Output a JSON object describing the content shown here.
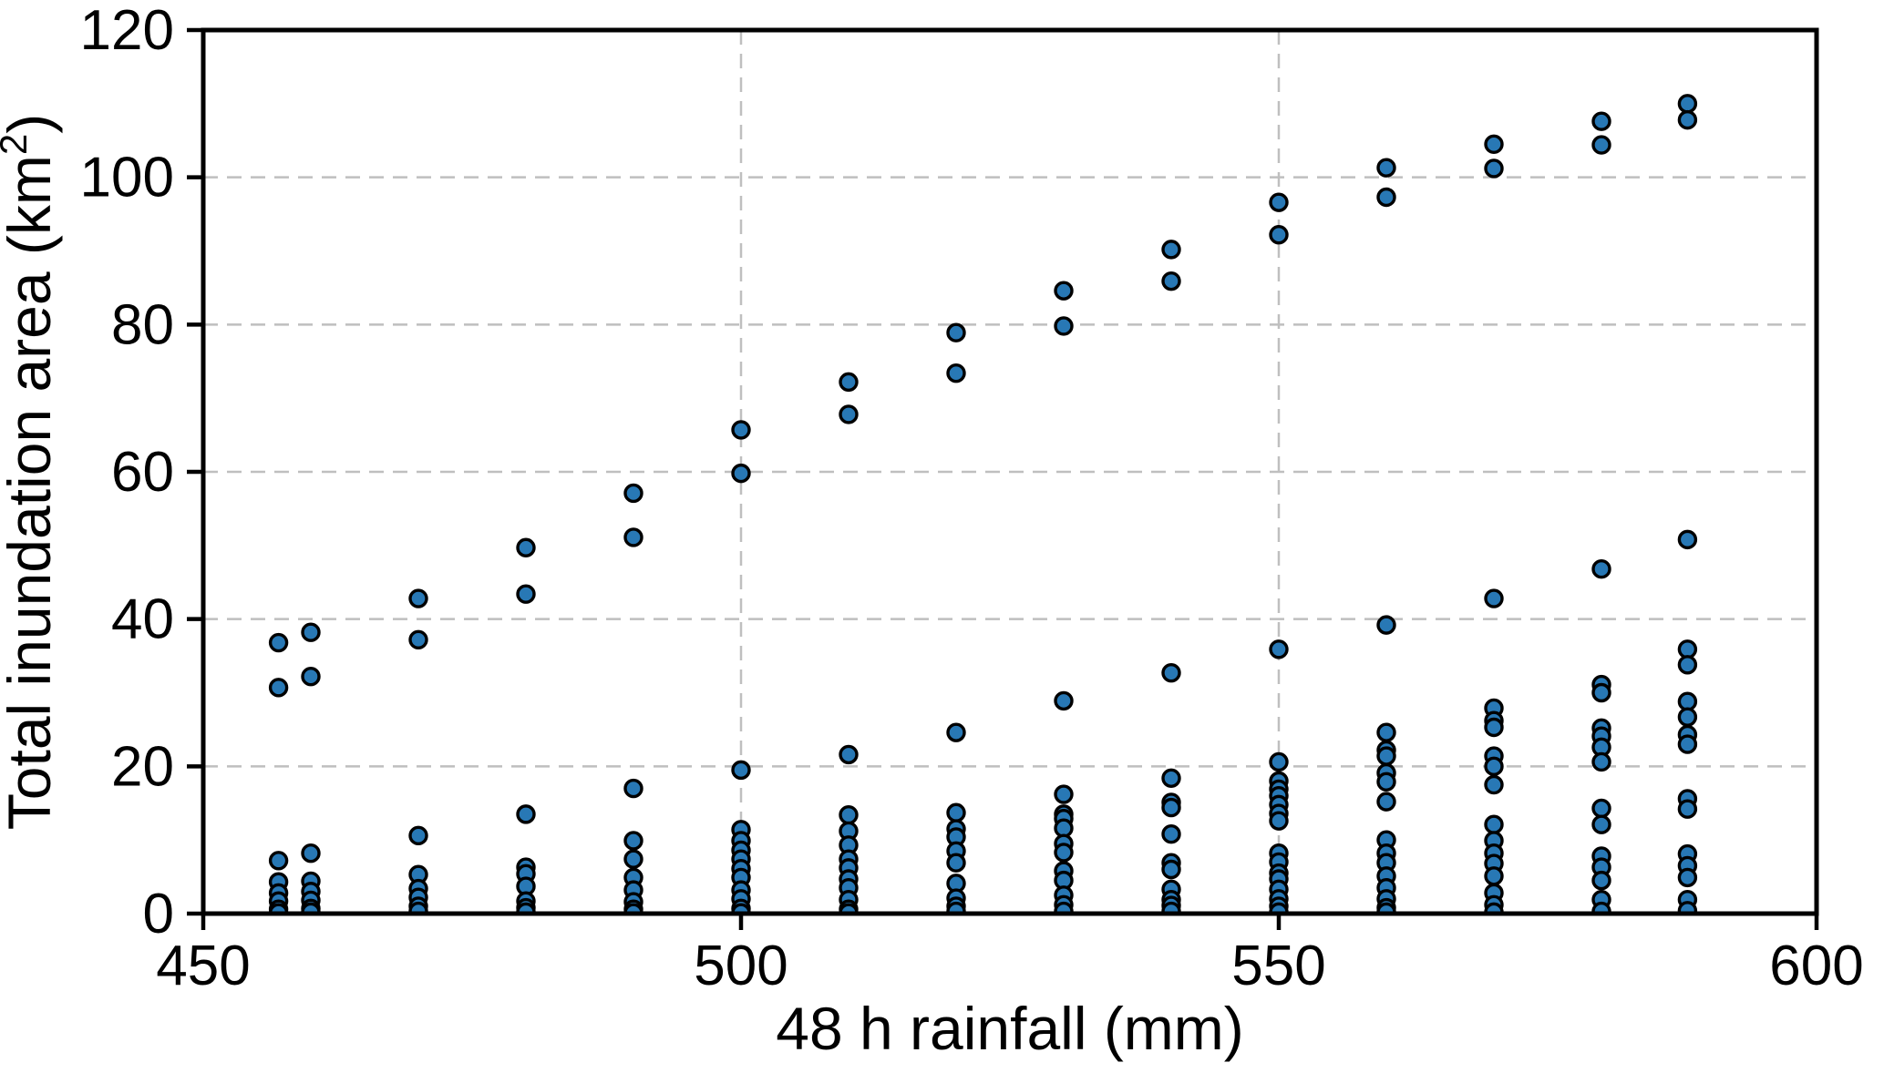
{
  "figure": {
    "background_color": "#ffffff",
    "plot_border_color": "#000000"
  },
  "chart_data": {
    "type": "scatter",
    "title": "",
    "xlabel": "48 h rainfall (mm)",
    "ylabel": "Total inundation area (km²)",
    "ylabel_parts": {
      "pre": "Total inundation area (km",
      "sup": "2",
      "post": ")"
    },
    "xlim": [
      450,
      600
    ],
    "ylim": [
      0,
      120
    ],
    "xticks": [
      450,
      500,
      550,
      600
    ],
    "yticks": [
      0,
      20,
      40,
      60,
      80,
      100,
      120
    ],
    "grid": {
      "style": "dashed",
      "color": "#bfbfbf",
      "horizontal_at": [
        20,
        40,
        60,
        80,
        100
      ],
      "vertical_at": [
        500,
        550
      ]
    },
    "legend": "none",
    "marker": {
      "shape": "circle",
      "fill_color": "#2878b5",
      "edge_color": "#000000"
    },
    "points_by_rainfall": [
      {
        "x": 457,
        "y": [
          36.8,
          30.7,
          7.2,
          4.3,
          2.8,
          1.7,
          0.6,
          0.1
        ]
      },
      {
        "x": 460,
        "y": [
          38.2,
          32.2,
          8.2,
          4.4,
          3.0,
          1.8,
          0.7,
          0.2
        ]
      },
      {
        "x": 470,
        "y": [
          42.8,
          37.2,
          10.6,
          5.3,
          3.4,
          2.2,
          1.0,
          0.3
        ]
      },
      {
        "x": 480,
        "y": [
          49.7,
          43.4,
          13.5,
          6.3,
          5.4,
          3.7,
          1.7,
          0.8,
          0.2
        ]
      },
      {
        "x": 490,
        "y": [
          57.1,
          51.1,
          17.0,
          9.9,
          7.4,
          4.9,
          3.2,
          1.6,
          0.6,
          0.1
        ]
      },
      {
        "x": 500,
        "y": [
          65.7,
          59.8,
          19.5,
          11.4,
          9.9,
          8.6,
          7.4,
          6.1,
          4.9,
          3.2,
          2.0,
          0.7,
          0.1
        ]
      },
      {
        "x": 510,
        "y": [
          72.2,
          67.8,
          21.6,
          13.4,
          11.2,
          9.3,
          7.4,
          6.2,
          4.7,
          3.5,
          1.9,
          0.6,
          0.1
        ]
      },
      {
        "x": 520,
        "y": [
          78.9,
          73.4,
          24.6,
          13.7,
          11.5,
          10.4,
          8.5,
          6.9,
          4.1,
          2.1,
          1.0,
          0.3
        ]
      },
      {
        "x": 530,
        "y": [
          84.6,
          79.8,
          28.9,
          16.2,
          13.5,
          12.9,
          11.6,
          9.5,
          8.3,
          5.8,
          4.5,
          2.5,
          1.2,
          0.3
        ]
      },
      {
        "x": 540,
        "y": [
          90.2,
          85.9,
          32.7,
          18.4,
          15.1,
          14.4,
          10.8,
          6.9,
          6.0,
          3.3,
          1.9,
          1.1,
          0.3
        ]
      },
      {
        "x": 550,
        "y": [
          96.6,
          92.2,
          35.9,
          20.6,
          18.0,
          16.9,
          16.0,
          14.8,
          13.6,
          12.6,
          8.2,
          7.0,
          5.5,
          4.7,
          3.3,
          2.0,
          1.0,
          0.2
        ]
      },
      {
        "x": 560,
        "y": [
          101.3,
          97.3,
          39.2,
          24.6,
          22.2,
          21.4,
          19.1,
          17.9,
          15.2,
          10.0,
          8.2,
          6.9,
          5.1,
          3.5,
          2.0,
          0.8,
          0.2
        ]
      },
      {
        "x": 570,
        "y": [
          104.5,
          101.2,
          42.8,
          27.9,
          26.2,
          25.3,
          21.4,
          20.0,
          17.5,
          12.1,
          9.9,
          8.2,
          6.8,
          5.1,
          2.8,
          1.2,
          0.2
        ]
      },
      {
        "x": 580,
        "y": [
          107.6,
          104.4,
          46.8,
          31.1,
          30.0,
          25.2,
          24.1,
          22.6,
          20.6,
          14.3,
          12.1,
          7.8,
          6.3,
          4.5,
          1.9,
          0.3
        ]
      },
      {
        "x": 588,
        "y": [
          110.0,
          107.8,
          50.8,
          35.9,
          33.8,
          28.8,
          26.7,
          24.3,
          23.0,
          15.6,
          14.2,
          8.1,
          6.5,
          4.9,
          1.9,
          0.4
        ]
      }
    ]
  }
}
